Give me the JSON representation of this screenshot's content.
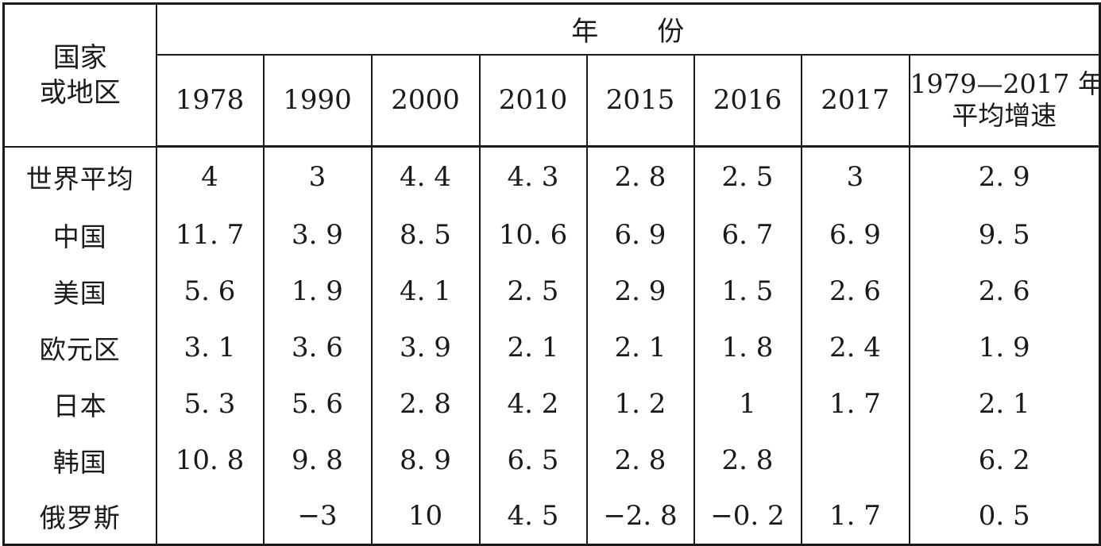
{
  "header": {
    "country_label_line1": "国家",
    "country_label_line2": "或地区",
    "year_group_label": "年份",
    "years": [
      "1978",
      "1990",
      "2000",
      "2010",
      "2015",
      "2016",
      "2017"
    ],
    "growth_label_line1": "1979—2017 年",
    "growth_label_line2": "平均增速"
  },
  "rows": [
    {
      "name": "世界平均",
      "values": [
        "4",
        "3",
        "4. 4",
        "4. 3",
        "2. 8",
        "2. 5",
        "3",
        "2. 9"
      ]
    },
    {
      "name": "中国",
      "values": [
        "11. 7",
        "3. 9",
        "8. 5",
        "10. 6",
        "6. 9",
        "6. 7",
        "6. 9",
        "9. 5"
      ]
    },
    {
      "name": "美国",
      "values": [
        "5. 6",
        "1. 9",
        "4. 1",
        "2. 5",
        "2. 9",
        "1. 5",
        "2. 6",
        "2. 6"
      ]
    },
    {
      "name": "欧元区",
      "values": [
        "3. 1",
        "3. 6",
        "3. 9",
        "2. 1",
        "2. 1",
        "1. 8",
        "2. 4",
        "1. 9"
      ]
    },
    {
      "name": "日本",
      "values": [
        "5. 3",
        "5. 6",
        "2. 8",
        "4. 2",
        "1. 2",
        "1",
        "1. 7",
        "2. 1"
      ]
    },
    {
      "name": "韩国",
      "values": [
        "10. 8",
        "9. 8",
        "8. 9",
        "6. 5",
        "2. 8",
        "2. 8",
        "",
        "6. 2"
      ]
    },
    {
      "name": "俄罗斯",
      "values": [
        "",
        "−3",
        "10",
        "4. 5",
        "−2. 8",
        "−0. 2",
        "1. 7",
        "0. 5"
      ]
    }
  ]
}
